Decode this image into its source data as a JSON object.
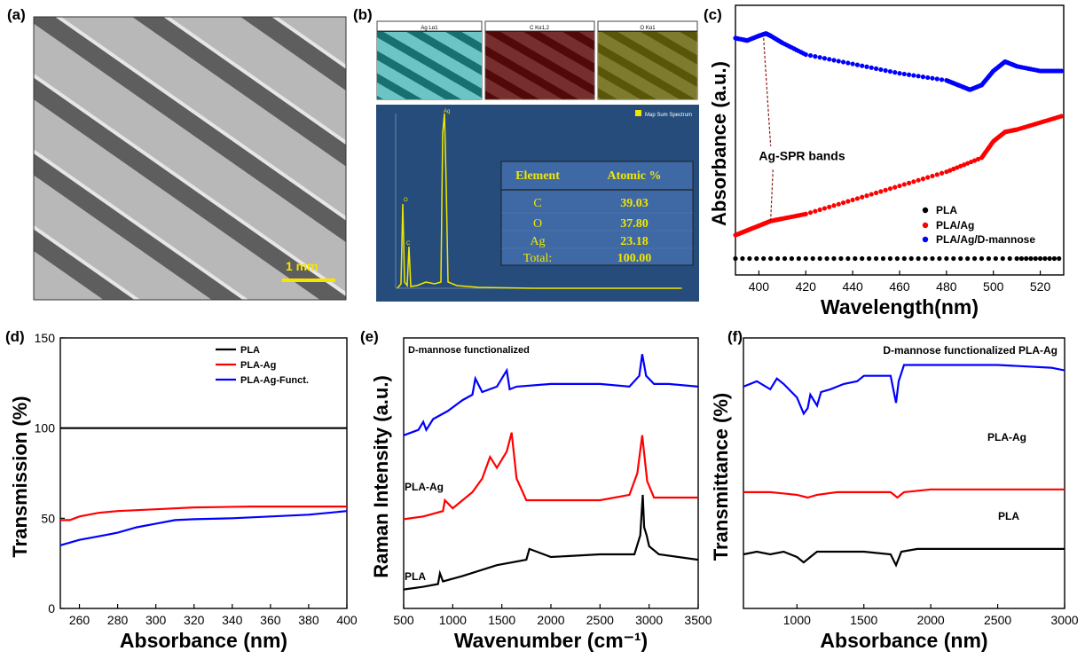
{
  "panel_labels": [
    "(a)",
    "(b)",
    "(c)",
    "(d)",
    "(e)",
    "(f)"
  ],
  "panel_a": {
    "scale_label": "1 mm",
    "scale_color": "#f5e600"
  },
  "panel_b": {
    "map_titles": [
      "Ag Lα1",
      "C Kα1,2",
      "O Kα1"
    ],
    "map_colors": [
      "#2cc7c9",
      "#c21a1a",
      "#d9d21a"
    ],
    "spectrum_legend": "Map Sum Spectrum",
    "peak_labels": [
      "Ag",
      "O",
      "C"
    ],
    "table": {
      "headers": [
        "Element",
        "Atomic %"
      ],
      "rows": [
        [
          "C",
          "39.03"
        ],
        [
          "O",
          "37.80"
        ],
        [
          "Ag",
          "23.18"
        ],
        [
          "Total:",
          "100.00"
        ]
      ]
    }
  },
  "chart_data": [
    {
      "panel": "c",
      "type": "scatter",
      "xlabel": "Wavelength(nm)",
      "ylabel": "Absorbance (a.u.)",
      "xlim": [
        390,
        530
      ],
      "xticks": [
        400,
        420,
        440,
        460,
        480,
        500,
        520
      ],
      "annotation": "Ag-SPR bands",
      "legend_position": "bottom-right",
      "series": [
        {
          "name": "PLA",
          "color": "#000000",
          "x": [
            390,
            420,
            450,
            480,
            510,
            530
          ],
          "y": [
            0.02,
            0.02,
            0.02,
            0.02,
            0.02,
            0.02
          ]
        },
        {
          "name": "PLA/Ag",
          "color": "#ff0000",
          "x": [
            390,
            395,
            400,
            405,
            410,
            420,
            440,
            460,
            480,
            495,
            500,
            505,
            510,
            520,
            530
          ],
          "y": [
            0.12,
            0.14,
            0.16,
            0.18,
            0.19,
            0.21,
            0.27,
            0.33,
            0.39,
            0.45,
            0.52,
            0.56,
            0.57,
            0.6,
            0.63
          ]
        },
        {
          "name": "PLA/Ag/D-mannose",
          "color": "#0000ff",
          "x": [
            390,
            395,
            400,
            403,
            405,
            410,
            420,
            440,
            460,
            480,
            485,
            490,
            495,
            500,
            505,
            510,
            520,
            530
          ],
          "y": [
            0.96,
            0.95,
            0.97,
            0.98,
            0.97,
            0.94,
            0.89,
            0.85,
            0.81,
            0.78,
            0.76,
            0.74,
            0.76,
            0.82,
            0.86,
            0.84,
            0.82,
            0.82
          ]
        }
      ]
    },
    {
      "panel": "d",
      "type": "line",
      "xlabel": "Absorbance (nm)",
      "ylabel": "Transmission (%)",
      "xlim": [
        250,
        400
      ],
      "ylim": [
        0,
        150
      ],
      "xticks": [
        260,
        280,
        300,
        320,
        340,
        360,
        380,
        400
      ],
      "yticks": [
        0,
        50,
        100,
        150
      ],
      "legend_position": "top-right",
      "series": [
        {
          "name": "PLA",
          "color": "#000000",
          "x": [
            250,
            400
          ],
          "y": [
            100,
            100
          ]
        },
        {
          "name": "PLA-Ag",
          "color": "#ff0000",
          "x": [
            250,
            255,
            260,
            270,
            280,
            300,
            320,
            350,
            380,
            400
          ],
          "y": [
            49,
            49,
            51,
            53,
            54,
            55,
            56,
            56.5,
            56.5,
            56.5
          ]
        },
        {
          "name": "PLA-Ag-Funct.",
          "color": "#0000ff",
          "x": [
            250,
            260,
            270,
            280,
            290,
            300,
            310,
            320,
            340,
            360,
            380,
            400
          ],
          "y": [
            35,
            38,
            40,
            42,
            45,
            47,
            49,
            49.5,
            50,
            51,
            52,
            54
          ]
        }
      ]
    },
    {
      "panel": "e",
      "type": "line",
      "xlabel": "Wavenumber (cm⁻¹)",
      "ylabel": "Raman Intensity (a.u.)",
      "xlim": [
        500,
        3500
      ],
      "xticks": [
        500,
        1000,
        1500,
        2000,
        2500,
        3000,
        3500
      ],
      "series": [
        {
          "name": "D-mannose functionalized",
          "color": "#0000ff",
          "x": [
            500,
            650,
            700,
            730,
            800,
            950,
            1100,
            1200,
            1230,
            1300,
            1450,
            1550,
            1580,
            1650,
            2000,
            2500,
            2800,
            2900,
            2930,
            2970,
            3050,
            3200,
            3500
          ],
          "y": [
            0.64,
            0.66,
            0.69,
            0.66,
            0.7,
            0.73,
            0.77,
            0.79,
            0.85,
            0.8,
            0.82,
            0.88,
            0.81,
            0.82,
            0.83,
            0.83,
            0.82,
            0.86,
            0.94,
            0.86,
            0.83,
            0.83,
            0.82
          ]
        },
        {
          "name": "PLA-Ag",
          "color": "#ff0000",
          "x": [
            500,
            700,
            900,
            920,
            1000,
            1200,
            1300,
            1380,
            1450,
            1550,
            1600,
            1650,
            1750,
            2000,
            2500,
            2800,
            2880,
            2930,
            2980,
            3050,
            3500
          ],
          "y": [
            0.33,
            0.34,
            0.36,
            0.4,
            0.37,
            0.43,
            0.48,
            0.56,
            0.52,
            0.58,
            0.65,
            0.48,
            0.4,
            0.4,
            0.4,
            0.42,
            0.5,
            0.64,
            0.47,
            0.41,
            0.41
          ]
        },
        {
          "name": "PLA",
          "color": "#000000",
          "x": [
            500,
            700,
            850,
            870,
            900,
            1100,
            1450,
            1750,
            1780,
            2000,
            2500,
            2850,
            2910,
            2935,
            2950,
            2975,
            3000,
            3100,
            3500
          ],
          "y": [
            0.07,
            0.08,
            0.09,
            0.13,
            0.1,
            0.12,
            0.16,
            0.18,
            0.22,
            0.19,
            0.2,
            0.2,
            0.27,
            0.42,
            0.3,
            0.27,
            0.23,
            0.2,
            0.18
          ]
        }
      ]
    },
    {
      "panel": "f",
      "type": "line",
      "xlabel": "Absorbance (nm)",
      "ylabel": "Transmittance (%)",
      "xlim": [
        600,
        3000
      ],
      "xticks": [
        1000,
        1500,
        2000,
        2500,
        3000
      ],
      "series": [
        {
          "name": "D-mannose functionalized PLA-Ag",
          "color": "#0000ff",
          "x": [
            600,
            700,
            800,
            850,
            900,
            1000,
            1050,
            1080,
            1100,
            1150,
            1180,
            1250,
            1350,
            1450,
            1500,
            1700,
            1740,
            1760,
            1800,
            2000,
            2500,
            2900,
            3000
          ],
          "y": [
            0.82,
            0.84,
            0.81,
            0.85,
            0.83,
            0.78,
            0.72,
            0.74,
            0.79,
            0.75,
            0.8,
            0.81,
            0.83,
            0.84,
            0.86,
            0.86,
            0.76,
            0.84,
            0.9,
            0.9,
            0.9,
            0.89,
            0.88
          ]
        },
        {
          "name": "PLA-Ag",
          "color": "#ff0000",
          "x": [
            600,
            800,
            1000,
            1080,
            1150,
            1300,
            1500,
            1700,
            1750,
            1800,
            2000,
            2500,
            3000
          ],
          "y": [
            0.43,
            0.43,
            0.42,
            0.41,
            0.42,
            0.43,
            0.43,
            0.43,
            0.41,
            0.43,
            0.44,
            0.44,
            0.44
          ]
        },
        {
          "name": "PLA",
          "color": "#000000",
          "x": [
            600,
            700,
            800,
            900,
            1000,
            1050,
            1100,
            1150,
            1250,
            1400,
            1500,
            1700,
            1740,
            1780,
            1900,
            2000,
            2500,
            3000
          ],
          "y": [
            0.2,
            0.21,
            0.2,
            0.21,
            0.19,
            0.17,
            0.19,
            0.21,
            0.21,
            0.21,
            0.21,
            0.2,
            0.16,
            0.21,
            0.22,
            0.22,
            0.22,
            0.22
          ]
        }
      ]
    }
  ]
}
